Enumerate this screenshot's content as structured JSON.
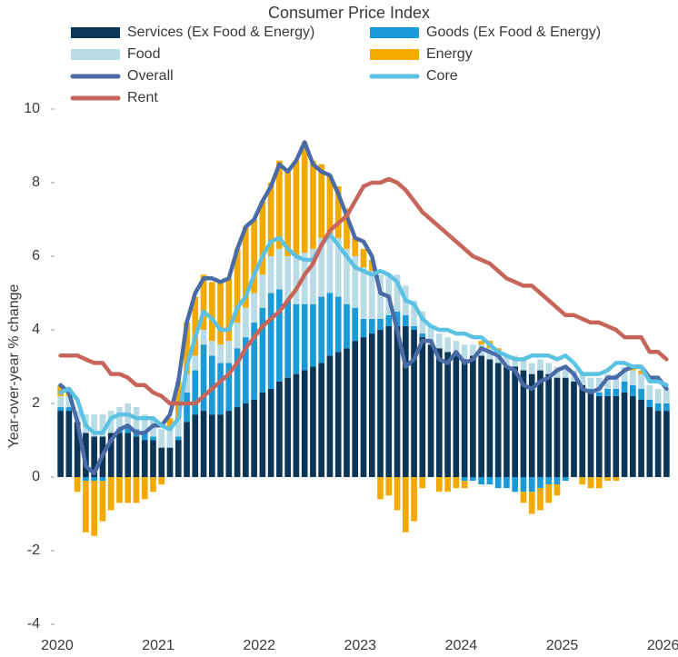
{
  "chart_data": {
    "type": "bar",
    "title": "Consumer Price Index",
    "y_label": "Year-over-year % change",
    "categories": [
      "2020",
      null,
      null,
      null,
      null,
      null,
      null,
      null,
      null,
      null,
      null,
      null,
      "2021",
      null,
      null,
      null,
      null,
      null,
      null,
      null,
      null,
      null,
      null,
      null,
      "2022",
      null,
      null,
      null,
      null,
      null,
      null,
      null,
      null,
      null,
      null,
      null,
      "2023",
      null,
      null,
      null,
      null,
      null,
      null,
      null,
      null,
      null,
      null,
      null,
      "2024",
      null,
      null,
      null,
      null,
      null,
      null,
      null,
      null,
      null,
      null,
      null,
      "2025",
      null,
      null,
      null,
      null,
      null,
      null,
      null,
      null,
      null,
      null,
      null,
      "2026"
    ],
    "ylim": [
      -4,
      10
    ],
    "yticks": [
      -4,
      -2,
      0,
      2,
      4,
      6,
      8,
      10
    ],
    "series": [
      {
        "name": "Services (Ex Food & Energy)",
        "type": "bar",
        "color": "#0c3657",
        "values": [
          1.8,
          1.8,
          1.5,
          1.2,
          1.1,
          1.1,
          1.2,
          1.2,
          1.2,
          1.1,
          1.0,
          1.0,
          0.8,
          0.8,
          1.0,
          1.5,
          1.7,
          1.8,
          1.7,
          1.7,
          1.8,
          1.9,
          2.0,
          2.1,
          2.3,
          2.4,
          2.6,
          2.7,
          2.8,
          2.9,
          3.0,
          3.1,
          3.3,
          3.4,
          3.5,
          3.7,
          3.8,
          3.9,
          4.0,
          4.1,
          4.1,
          4.1,
          4.0,
          3.8,
          3.6,
          3.5,
          3.4,
          3.3,
          3.2,
          3.3,
          3.3,
          3.2,
          3.1,
          3.0,
          3.0,
          2.9,
          2.8,
          2.9,
          2.8,
          2.7,
          2.7,
          2.6,
          2.5,
          2.3,
          2.2,
          2.2,
          2.2,
          2.3,
          2.2,
          2.1,
          1.9,
          1.8,
          1.8
        ]
      },
      {
        "name": "Goods (Ex Food & Energy)",
        "type": "bar",
        "color": "#1a9ad6",
        "values": [
          0.1,
          0.1,
          0,
          -0.1,
          -0.1,
          -0.1,
          0,
          0.1,
          0.2,
          0.2,
          0.2,
          0.1,
          0,
          0,
          0.1,
          0.8,
          1.2,
          1.8,
          1.6,
          1.4,
          1.3,
          1.6,
          1.8,
          2.1,
          2.3,
          2.6,
          2.5,
          2.1,
          1.9,
          1.8,
          1.7,
          1.8,
          1.7,
          1.5,
          1.2,
          0.9,
          0.5,
          0.4,
          0.3,
          0.3,
          0.4,
          0.3,
          0.1,
          0.1,
          0,
          0,
          0,
          0,
          -0.1,
          -0.1,
          -0.2,
          -0.2,
          -0.3,
          -0.3,
          -0.4,
          -0.4,
          -0.4,
          -0.3,
          -0.2,
          -0.2,
          -0.1,
          0,
          0,
          0.1,
          0.1,
          0.2,
          0.2,
          0.3,
          0.3,
          0.3,
          0.2,
          0.2,
          0.2
        ]
      },
      {
        "name": "Food",
        "type": "bar",
        "color": "#b9dbe5",
        "values": [
          0.3,
          0.3,
          0.3,
          0.5,
          0.6,
          0.6,
          0.6,
          0.6,
          0.6,
          0.6,
          0.5,
          0.5,
          0.5,
          0.5,
          0.5,
          0.5,
          0.4,
          0.4,
          0.4,
          0.5,
          0.6,
          0.7,
          0.8,
          0.8,
          0.9,
          1.0,
          1.1,
          1.2,
          1.3,
          1.4,
          1.5,
          1.6,
          1.6,
          1.6,
          1.5,
          1.4,
          1.4,
          1.3,
          1.2,
          1.1,
          1.0,
          0.8,
          0.7,
          0.6,
          0.5,
          0.4,
          0.4,
          0.4,
          0.4,
          0.3,
          0.3,
          0.3,
          0.3,
          0.3,
          0.3,
          0.3,
          0.3,
          0.3,
          0.3,
          0.3,
          0.3,
          0.3,
          0.3,
          0.3,
          0.4,
          0.4,
          0.4,
          0.4,
          0.4,
          0.4,
          0.4,
          0.4,
          0.4
        ]
      },
      {
        "name": "Energy",
        "type": "bar",
        "color": "#f2a900",
        "values": [
          0.3,
          0.1,
          -0.4,
          -1.4,
          -1.5,
          -1.1,
          -0.9,
          -0.7,
          -0.7,
          -0.7,
          -0.6,
          -0.4,
          -0.2,
          0.3,
          1.0,
          1.4,
          1.6,
          1.5,
          1.6,
          1.7,
          1.7,
          2.0,
          2.2,
          2.0,
          2.0,
          2.0,
          2.4,
          2.3,
          2.6,
          3.0,
          2.4,
          2.0,
          1.6,
          1.4,
          1.1,
          0.5,
          0.5,
          0.3,
          -0.6,
          -0.5,
          -0.9,
          -1.5,
          -1.2,
          -0.3,
          0,
          -0.4,
          -0.4,
          -0.3,
          -0.2,
          0,
          0.1,
          0.2,
          0.1,
          0,
          0,
          -0.3,
          -0.6,
          -0.6,
          -0.5,
          -0.3,
          0,
          0,
          -0.2,
          -0.3,
          -0.3,
          -0.1,
          -0.1,
          0,
          0.1,
          0.1,
          0,
          0,
          0
        ]
      },
      {
        "name": "Overall",
        "type": "line",
        "color": "#4a6ba6",
        "values": [
          2.5,
          2.3,
          1.5,
          0.3,
          0.1,
          0.6,
          1.0,
          1.3,
          1.4,
          1.2,
          1.2,
          1.4,
          1.4,
          1.7,
          2.6,
          4.2,
          5.0,
          5.4,
          5.4,
          5.3,
          5.4,
          6.2,
          6.8,
          7.0,
          7.5,
          7.9,
          8.5,
          8.3,
          8.6,
          9.1,
          8.5,
          8.3,
          8.2,
          7.7,
          7.1,
          6.5,
          6.4,
          6.0,
          5.0,
          4.9,
          4.0,
          3.0,
          3.2,
          3.7,
          3.7,
          3.2,
          3.1,
          3.4,
          3.1,
          3.2,
          3.5,
          3.4,
          3.3,
          3.0,
          2.9,
          2.5,
          2.4,
          2.6,
          2.7,
          2.9,
          3.0,
          2.8,
          2.4,
          2.3,
          2.4,
          2.7,
          2.7,
          2.9,
          3.0,
          3.0,
          2.7,
          2.7,
          2.4
        ]
      },
      {
        "name": "Core",
        "type": "line",
        "color": "#5bc2e3",
        "values": [
          2.3,
          2.4,
          2.1,
          1.4,
          1.2,
          1.2,
          1.6,
          1.7,
          1.7,
          1.6,
          1.6,
          1.6,
          1.4,
          1.3,
          1.6,
          3.0,
          3.8,
          4.5,
          4.3,
          4.0,
          4.0,
          4.6,
          4.9,
          5.5,
          6.0,
          6.4,
          6.5,
          6.2,
          6.0,
          5.9,
          5.9,
          6.3,
          6.6,
          6.3,
          6.0,
          5.7,
          5.6,
          5.5,
          5.6,
          5.5,
          5.3,
          4.8,
          4.7,
          4.3,
          4.1,
          4.0,
          4.0,
          3.9,
          3.9,
          3.8,
          3.8,
          3.6,
          3.4,
          3.3,
          3.2,
          3.2,
          3.3,
          3.3,
          3.3,
          3.2,
          3.3,
          3.1,
          2.8,
          2.8,
          2.8,
          2.9,
          3.1,
          3.1,
          3.0,
          3.0,
          2.6,
          2.6,
          2.5
        ]
      },
      {
        "name": "Rent",
        "type": "line",
        "color": "#c8655a",
        "values": [
          3.3,
          3.3,
          3.3,
          3.2,
          3.1,
          3.1,
          2.8,
          2.8,
          2.7,
          2.5,
          2.5,
          2.3,
          2.2,
          2.0,
          2.0,
          2.0,
          2.0,
          2.2,
          2.4,
          2.6,
          2.8,
          3.1,
          3.5,
          3.8,
          4.1,
          4.3,
          4.5,
          4.8,
          5.1,
          5.5,
          5.8,
          6.3,
          6.7,
          6.9,
          7.1,
          7.5,
          7.9,
          8.0,
          8.0,
          8.1,
          8.0,
          7.8,
          7.5,
          7.2,
          7.0,
          6.8,
          6.6,
          6.4,
          6.2,
          6.0,
          5.9,
          5.8,
          5.6,
          5.4,
          5.3,
          5.2,
          5.2,
          5.0,
          4.8,
          4.6,
          4.4,
          4.4,
          4.3,
          4.2,
          4.2,
          4.1,
          4.0,
          3.8,
          3.8,
          3.8,
          3.4,
          3.4,
          3.2
        ]
      }
    ]
  }
}
